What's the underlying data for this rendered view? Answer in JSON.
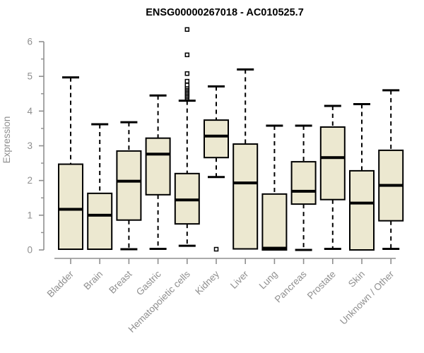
{
  "page": {
    "background": "#ffffff"
  },
  "chart_data": {
    "type": "boxplot",
    "title": "ENSG00000267018 - AC010525.7",
    "ylabel": "Expression",
    "xlabel": "",
    "ylim": [
      0,
      6
    ],
    "y_major_ticks": [
      0,
      1,
      2,
      3,
      4,
      5,
      6
    ],
    "y_minor_ticks": [
      0.5,
      1.5,
      2.5,
      3.5,
      4.5,
      5.5
    ],
    "grid": false,
    "legend": "none",
    "colors": {
      "box_fill": "#ece8d0",
      "box_stroke": "#000000",
      "median": "#000000",
      "whisker": "#000000",
      "axis": "#8f8f8f",
      "tick_text": "#8f8f8f",
      "title": "#000000",
      "outlier_stroke": "#000000",
      "outlier_fill": "#ffffff"
    },
    "categories": [
      "Bladder",
      "Brain",
      "Breast",
      "Gastric",
      "Hematopoietic cells",
      "Kidney",
      "Liver",
      "Lung",
      "Pancreas",
      "Prostate",
      "Skin",
      "Unknown / Other"
    ],
    "boxes": [
      {
        "category": "Bladder",
        "low": 0.02,
        "q1": 0.02,
        "median": 1.17,
        "q3": 2.47,
        "high": 4.97,
        "outliers": []
      },
      {
        "category": "Brain",
        "low": 0.02,
        "q1": 0.02,
        "median": 1.0,
        "q3": 1.63,
        "high": 3.62,
        "outliers": []
      },
      {
        "category": "Breast",
        "low": 0.02,
        "q1": 0.86,
        "median": 1.98,
        "q3": 2.85,
        "high": 3.68,
        "outliers": []
      },
      {
        "category": "Gastric",
        "low": 0.03,
        "q1": 1.59,
        "median": 2.76,
        "q3": 3.22,
        "high": 4.45,
        "outliers": []
      },
      {
        "category": "Hematopoietic cells",
        "low": 0.12,
        "q1": 0.75,
        "median": 1.44,
        "q3": 2.2,
        "high": 4.3,
        "outliers": [
          4.38,
          4.42,
          4.46,
          4.5,
          4.54,
          4.58,
          4.62,
          4.66,
          4.7,
          4.75,
          4.86,
          5.08,
          5.62,
          6.35
        ]
      },
      {
        "category": "Kidney",
        "low": 2.1,
        "q1": 2.66,
        "median": 3.28,
        "q3": 3.74,
        "high": 4.71,
        "outliers": [
          0.02
        ]
      },
      {
        "category": "Liver",
        "low": 0.03,
        "q1": 0.03,
        "median": 1.93,
        "q3": 3.05,
        "high": 5.2,
        "outliers": []
      },
      {
        "category": "Lung",
        "low": 0.0,
        "q1": 0.0,
        "median": 0.05,
        "q3": 1.61,
        "high": 3.58,
        "outliers": []
      },
      {
        "category": "Pancreas",
        "low": 0.0,
        "q1": 1.32,
        "median": 1.69,
        "q3": 2.54,
        "high": 3.58,
        "outliers": []
      },
      {
        "category": "Prostate",
        "low": 0.03,
        "q1": 1.45,
        "median": 2.66,
        "q3": 3.54,
        "high": 4.15,
        "outliers": []
      },
      {
        "category": "Skin",
        "low": 0.0,
        "q1": 0.0,
        "median": 1.35,
        "q3": 2.28,
        "high": 4.2,
        "outliers": []
      },
      {
        "category": "Unknown / Other",
        "low": 0.03,
        "q1": 0.84,
        "median": 1.86,
        "q3": 2.87,
        "high": 4.6,
        "outliers": []
      }
    ]
  }
}
